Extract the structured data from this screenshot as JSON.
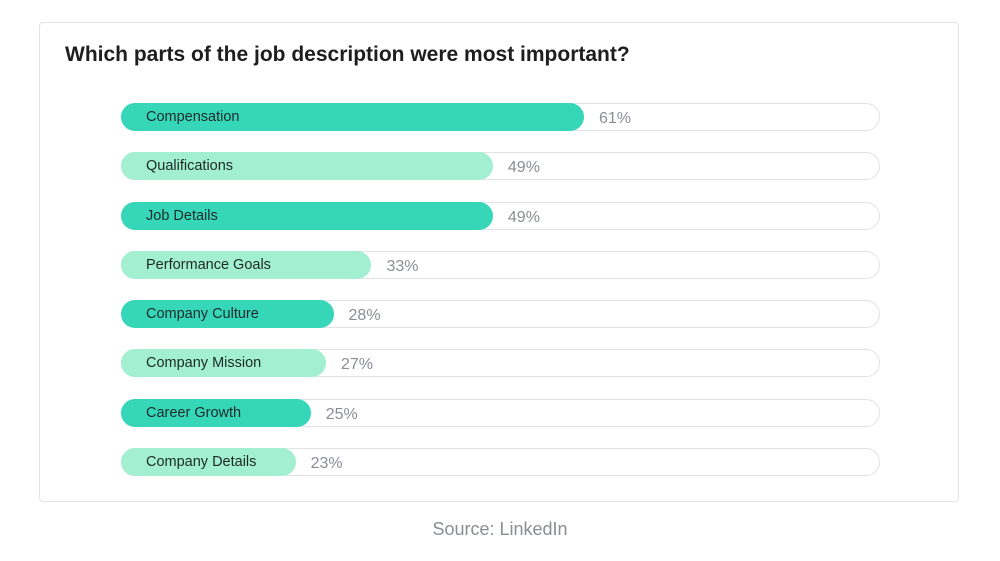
{
  "source": "Source: LinkedIn",
  "colors": {
    "dark": "#35d7b8",
    "light": "#a2efd2",
    "track_border": "#dfe3e8",
    "value_text": "#8a8d94"
  },
  "chart_data": {
    "type": "bar",
    "orientation": "horizontal",
    "title": "Which parts of the job description were most important?",
    "categories": [
      "Compensation",
      "Qualifications",
      "Job Details",
      "Performance Goals",
      "Company Culture",
      "Company Mission",
      "Career Growth",
      "Company Details"
    ],
    "values": [
      61,
      49,
      49,
      33,
      28,
      27,
      25,
      23
    ],
    "value_labels": [
      "61%",
      "49%",
      "49%",
      "33%",
      "28%",
      "27%",
      "25%",
      "23%"
    ],
    "unit": "%",
    "xlim": [
      0,
      100
    ],
    "grid": false,
    "legend": "none"
  }
}
